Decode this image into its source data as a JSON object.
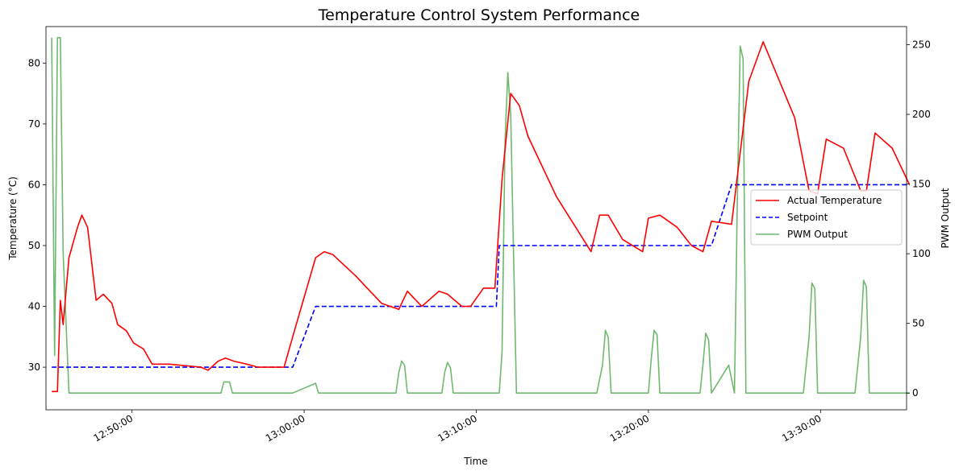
{
  "chart_data": {
    "type": "line",
    "title": "Temperature Control System Performance",
    "xlabel": "Time",
    "ylabel_left": "Temperature (°C)",
    "ylabel_right": "PWM Output",
    "x_ticks": [
      "12:50:00",
      "13:00:00",
      "13:10:00",
      "13:20:00",
      "13:30:00"
    ],
    "x_range_minutes": [
      "12:45:00",
      "13:35:00"
    ],
    "ylim_left": [
      23,
      86
    ],
    "y_ticks_left": [
      30,
      40,
      50,
      60,
      70,
      80
    ],
    "ylim_right": [
      -12,
      263
    ],
    "y_ticks_right": [
      0,
      50,
      100,
      150,
      200,
      250
    ],
    "grid": false,
    "legend_position": "center-right",
    "series": [
      {
        "name": "Actual Temperature",
        "axis": "left",
        "color": "#ff0000",
        "style": "solid",
        "x": [
          "12:45:20",
          "12:45:40",
          "12:45:50",
          "12:46:00",
          "12:46:20",
          "12:46:50",
          "12:47:05",
          "12:47:25",
          "12:47:55",
          "12:48:20",
          "12:48:50",
          "12:49:10",
          "12:49:40",
          "12:50:05",
          "12:50:40",
          "12:51:10",
          "12:51:40",
          "12:52:10",
          "12:54:00",
          "12:54:25",
          "12:55:00",
          "12:55:25",
          "12:55:55",
          "12:56:40",
          "12:57:20",
          "12:58:50",
          "12:59:20",
          "13:00:40",
          "13:01:10",
          "13:01:40",
          "13:03:00",
          "13:04:30",
          "13:05:30",
          "13:06:00",
          "13:06:50",
          "13:07:50",
          "13:08:20",
          "13:09:10",
          "13:09:40",
          "13:10:25",
          "13:11:05",
          "13:11:30",
          "13:12:00",
          "13:12:30",
          "13:13:00",
          "13:14:40",
          "13:16:40",
          "13:17:10",
          "13:17:40",
          "13:18:30",
          "13:19:40",
          "13:20:00",
          "13:20:40",
          "13:21:40",
          "13:22:30",
          "13:23:10",
          "13:23:40",
          "13:24:50",
          "13:25:50",
          "13:26:40",
          "13:28:30",
          "13:29:20",
          "13:29:50",
          "13:30:20",
          "13:31:20",
          "13:32:20",
          "13:32:40",
          "13:33:10",
          "13:34:10",
          "13:35:10"
        ],
        "values": [
          26,
          26,
          41,
          37,
          48,
          53,
          55,
          53,
          41,
          42,
          40.5,
          37,
          36,
          34,
          33,
          30.5,
          30.5,
          30.5,
          30,
          29.5,
          31,
          31.5,
          31,
          30.5,
          30,
          30,
          35,
          48,
          49,
          48.5,
          45,
          40.5,
          39.5,
          42.5,
          40,
          42.5,
          42,
          40,
          40,
          43,
          43,
          61,
          75,
          73,
          68,
          58,
          49,
          55,
          55,
          51,
          49,
          54.5,
          55,
          53,
          50,
          49,
          54,
          53.5,
          77,
          83.5,
          71,
          59,
          58.5,
          67.5,
          66,
          59,
          59,
          68.5,
          66,
          60
        ]
      },
      {
        "name": "Setpoint",
        "axis": "left",
        "color": "#0000ff",
        "style": "dashed",
        "x": [
          "12:45:20",
          "12:59:20",
          "13:00:40",
          "13:11:10",
          "13:11:20",
          "13:23:40",
          "13:24:50",
          "13:35:10"
        ],
        "values": [
          30,
          30,
          40,
          40,
          50,
          50,
          60,
          60
        ]
      },
      {
        "name": "PWM Output",
        "axis": "right",
        "color": "#6fb96f",
        "style": "solid",
        "x": [
          "12:45:20",
          "12:45:30",
          "12:45:40",
          "12:45:50",
          "12:46:00",
          "12:46:20",
          "12:46:40",
          "12:55:10",
          "12:55:20",
          "12:55:30",
          "12:55:40",
          "12:55:50",
          "12:59:20",
          "13:00:40",
          "13:00:50",
          "13:05:20",
          "13:05:30",
          "13:05:40",
          "13:05:50",
          "13:06:00",
          "13:08:00",
          "13:08:10",
          "13:08:20",
          "13:08:30",
          "13:08:40",
          "13:11:20",
          "13:11:30",
          "13:11:40",
          "13:11:50",
          "13:12:00",
          "13:12:10",
          "13:12:20",
          "13:17:00",
          "13:17:20",
          "13:17:30",
          "13:17:40",
          "13:17:50",
          "13:20:00",
          "13:20:10",
          "13:20:20",
          "13:20:30",
          "13:20:40",
          "13:23:00",
          "13:23:10",
          "13:23:20",
          "13:23:30",
          "13:23:40",
          "13:24:40",
          "13:25:00",
          "13:25:10",
          "13:25:20",
          "13:25:30",
          "13:25:40",
          "13:29:00",
          "13:29:20",
          "13:29:30",
          "13:29:40",
          "13:29:50",
          "13:32:00",
          "13:32:20",
          "13:32:30",
          "13:32:40",
          "13:32:50",
          "13:35:10"
        ],
        "values": [
          255,
          27,
          255,
          255,
          100,
          0,
          0,
          0,
          8,
          8,
          8,
          0,
          0,
          7,
          0,
          0,
          15,
          23,
          20,
          0,
          0,
          15,
          22,
          18,
          0,
          0,
          30,
          180,
          230,
          200,
          100,
          0,
          0,
          20,
          45,
          40,
          0,
          0,
          25,
          45,
          42,
          0,
          0,
          20,
          43,
          38,
          0,
          20,
          0,
          140,
          249,
          240,
          0,
          0,
          40,
          79,
          75,
          0,
          0,
          40,
          81,
          76,
          0,
          0
        ]
      }
    ]
  }
}
